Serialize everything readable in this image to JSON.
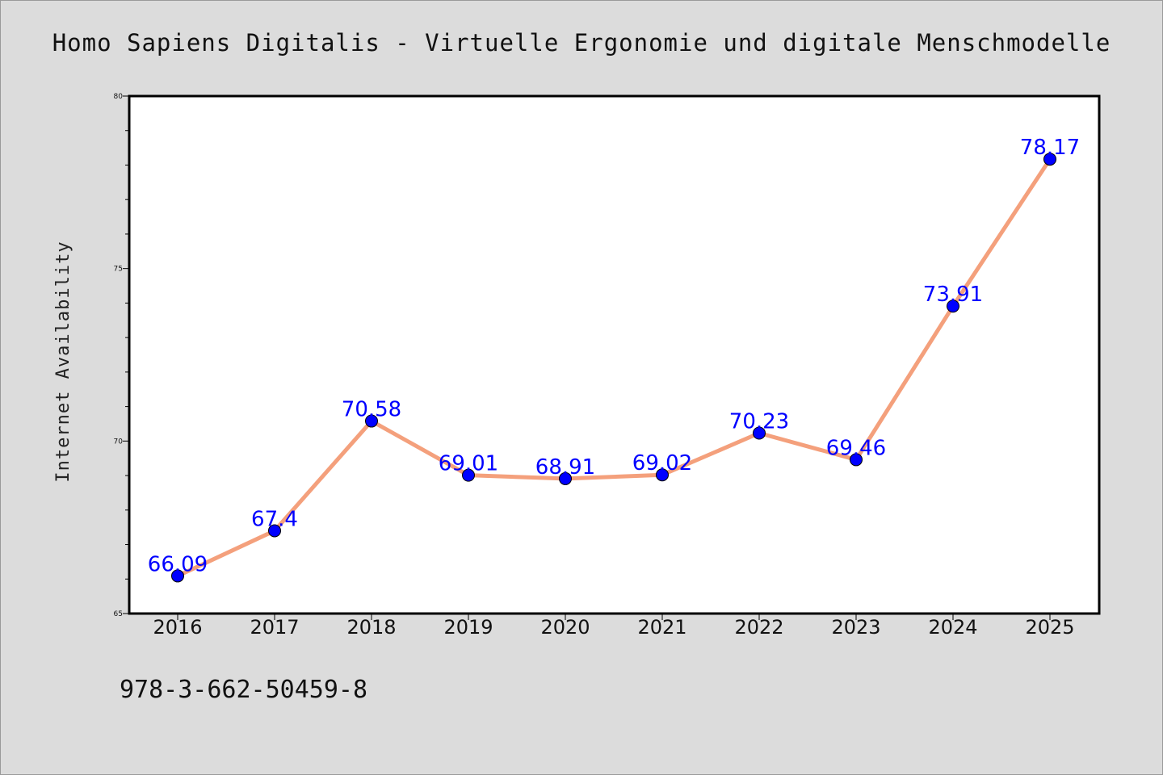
{
  "chart_data": {
    "type": "line",
    "title": "Homo Sapiens Digitalis - Virtuelle Ergonomie und digitale Menschmodelle",
    "xlabel": "",
    "ylabel": "Internet Availability",
    "categories": [
      "2016",
      "2017",
      "2018",
      "2019",
      "2020",
      "2021",
      "2022",
      "2023",
      "2024",
      "2025"
    ],
    "series": [
      {
        "values": [
          66.09,
          67.4,
          70.58,
          69.01,
          68.91,
          69.02,
          70.23,
          69.46,
          73.91,
          78.17
        ],
        "labels": [
          "66.09",
          "67.4",
          "70.58",
          "69.01",
          "68.91",
          "69.02",
          "70.23",
          "69.46",
          "73.91",
          "78.17"
        ]
      }
    ],
    "ylim": [
      65,
      80
    ],
    "yticks": [
      "65",
      "70",
      "75",
      "80"
    ],
    "grid": false,
    "colors": {
      "line": "#f4a07c",
      "marker": "#0000ff",
      "label": "#0000ff",
      "background": "#dcdcdc",
      "plot_background": "#ffffff"
    }
  },
  "footer": {
    "isbn": "978-3-662-50459-8"
  }
}
